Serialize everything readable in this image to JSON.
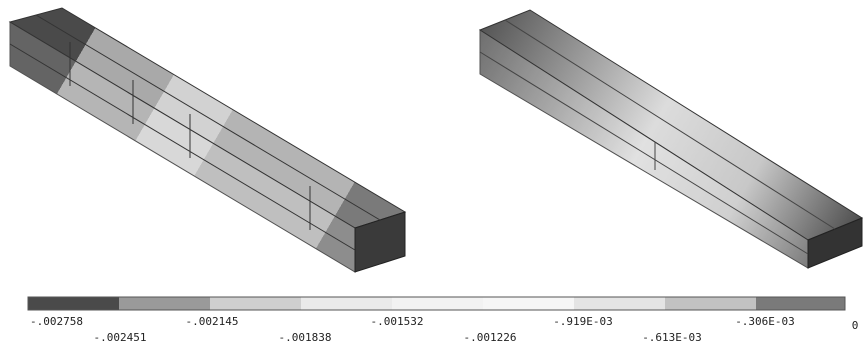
{
  "legend": {
    "labels": [
      "-.002758",
      "-.002451",
      "-.002145",
      "-.001838",
      "-.001532",
      "-.001226",
      "-.919E-03",
      "-.613E-03",
      "-.306E-03",
      "0"
    ]
  }
}
